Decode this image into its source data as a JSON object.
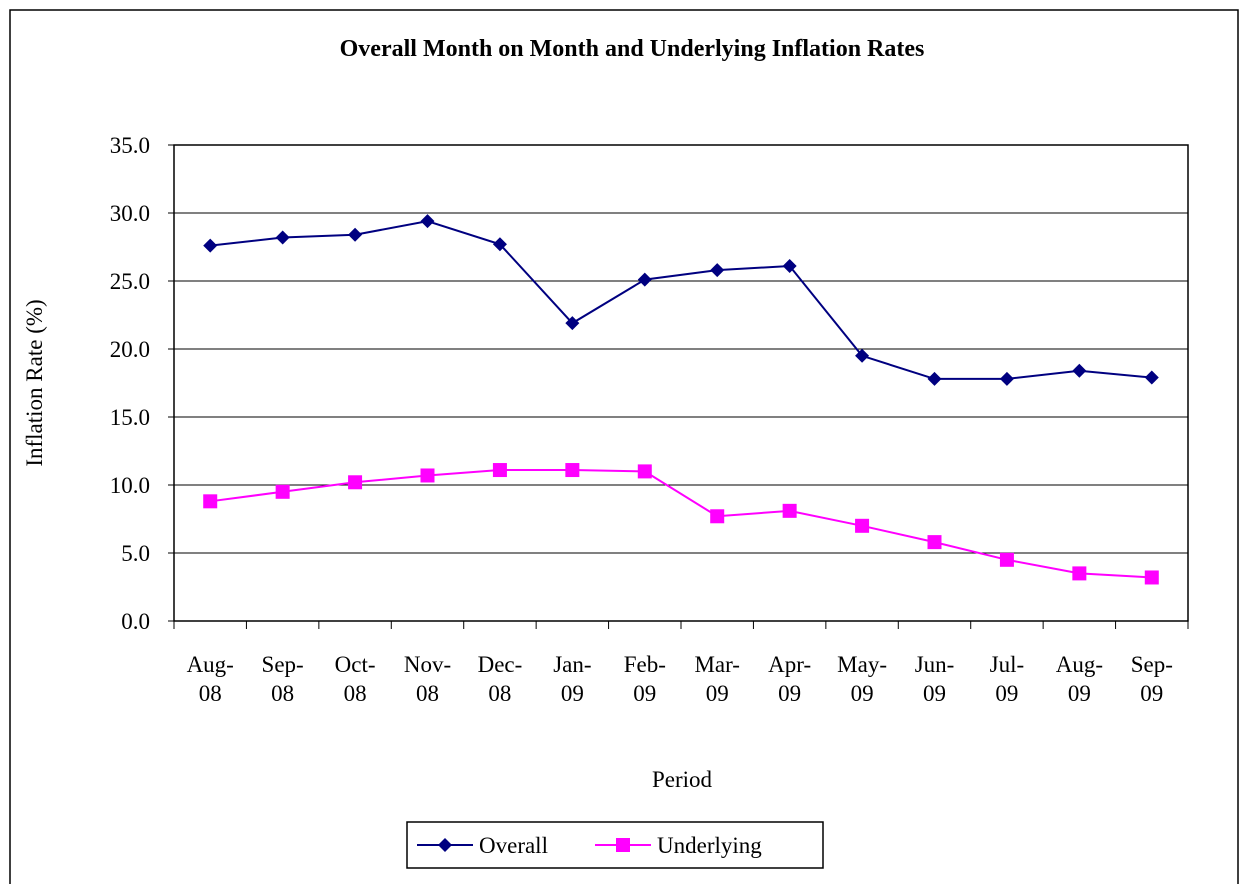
{
  "chart_data": {
    "type": "line",
    "title": "Overall Month on Month and Underlying Inflation Rates",
    "x_label": "Period",
    "y_label": "Inflation Rate (%)",
    "categories": [
      "Aug-08",
      "Sep-08",
      "Oct-08",
      "Nov-08",
      "Dec-08",
      "Jan-09",
      "Feb-09",
      "Mar-09",
      "Apr-09",
      "May-09",
      "Jun-09",
      "Jul-09",
      "Aug-09",
      "Sep-09"
    ],
    "series": [
      {
        "name": "Overall",
        "color": "#000080",
        "marker": "diamond",
        "values": [
          27.6,
          28.2,
          28.4,
          29.4,
          27.7,
          21.9,
          25.1,
          25.8,
          26.1,
          19.5,
          17.8,
          17.8,
          18.4,
          17.9
        ]
      },
      {
        "name": "Underlying",
        "color": "#ff00ff",
        "marker": "square",
        "values": [
          8.8,
          9.5,
          10.2,
          10.7,
          11.1,
          11.1,
          11.0,
          7.7,
          8.1,
          7.0,
          5.8,
          4.5,
          3.5,
          3.2
        ]
      }
    ],
    "ylim": [
      0,
      35
    ],
    "yticks": [
      {
        "value": 0,
        "label": "0.0"
      },
      {
        "value": 5,
        "label": "5.0"
      },
      {
        "value": 10,
        "label": "10.0"
      },
      {
        "value": 15,
        "label": "15.0"
      },
      {
        "value": 20,
        "label": "20.0"
      },
      {
        "value": 25,
        "label": "25.0"
      },
      {
        "value": 30,
        "label": "30.0"
      },
      {
        "value": 35,
        "label": "35.0"
      }
    ],
    "grid": true,
    "legend": "bottom"
  }
}
